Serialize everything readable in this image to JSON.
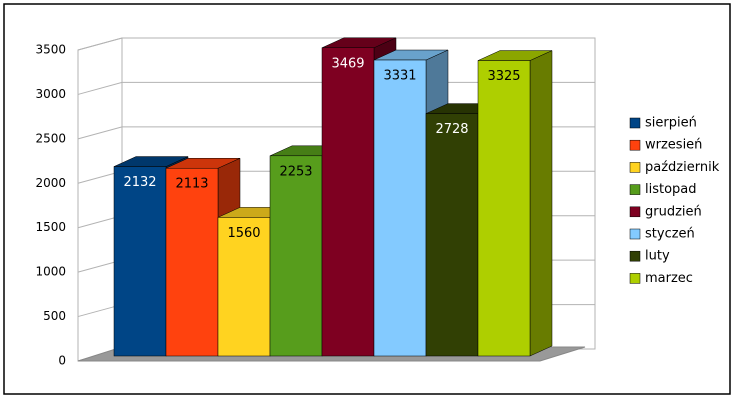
{
  "chart_data": {
    "type": "bar3d",
    "series": [
      {
        "name": "sierpień",
        "color": "#004586",
        "values": [
          2132
        ]
      },
      {
        "name": "wrzesień",
        "color": "#ff420e",
        "values": [
          2113
        ]
      },
      {
        "name": "październik",
        "color": "#ffd320",
        "values": [
          1560
        ]
      },
      {
        "name": "listopad",
        "color": "#579d1c",
        "values": [
          2253
        ]
      },
      {
        "name": "grudzień",
        "color": "#7e0021",
        "values": [
          3469
        ]
      },
      {
        "name": "styczeń",
        "color": "#83caff",
        "values": [
          3331
        ]
      },
      {
        "name": "luty",
        "color": "#314004",
        "values": [
          2728
        ]
      },
      {
        "name": "marzec",
        "color": "#aecf00",
        "values": [
          3325
        ]
      }
    ],
    "ylim": [
      0,
      3500
    ],
    "yticks": [
      0,
      500,
      1000,
      1500,
      2000,
      2500,
      3000,
      3500
    ],
    "grid": true,
    "legend": "right"
  }
}
